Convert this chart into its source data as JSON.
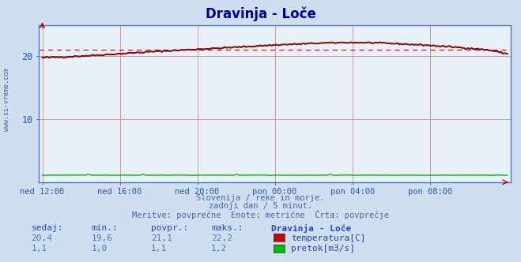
{
  "title": "Dravinja - Loče",
  "title_color": "#000099",
  "bg_color": "#d0dff0",
  "plot_bg_color": "#e8f0f8",
  "grid_color_h": "#cc8888",
  "grid_color_v": "#cc8888",
  "border_color": "#8899bb",
  "x_tick_labels": [
    "ned 12:00",
    "ned 16:00",
    "ned 20:00",
    "pon 00:00",
    "pon 04:00",
    "pon 08:00"
  ],
  "x_tick_positions": [
    0,
    48,
    96,
    144,
    192,
    240
  ],
  "n_points": 289,
  "temp_min": 19.6,
  "temp_max": 22.2,
  "temp_avg": 21.1,
  "temp_current": 20.4,
  "flow_min": 1.0,
  "flow_max": 1.2,
  "flow_avg": 1.1,
  "flow_current": 1.1,
  "temp_color": "#cc0000",
  "flow_color": "#00bb00",
  "avg_line_color": "#cc0000",
  "tick_color": "#2255bb",
  "watermark": "www.si-vreme.com",
  "subtitle1": "Slovenija / reke in morje.",
  "subtitle2": "zadnji dan / 5 minut.",
  "subtitle3": "Meritve: povprečne  Enote: metrične  Črta: povprečje",
  "info_headers": [
    "sedaj:",
    "min.:",
    "povpr.:",
    "maks.:",
    "Dravinja - Loče"
  ],
  "info_temp": [
    "20,4",
    "19,6",
    "21,1",
    "22,2"
  ],
  "info_flow": [
    "1,1",
    "1,0",
    "1,1",
    "1,2"
  ],
  "legend_temp": "temperatura[C]",
  "legend_flow": "pretok[m3/s]",
  "ylim": [
    0,
    25
  ],
  "y_ticks": [
    10,
    20
  ],
  "arrow_color": "#cc0000",
  "spine_color": "#4477cc",
  "axis_arrow_color": "#cc0000"
}
